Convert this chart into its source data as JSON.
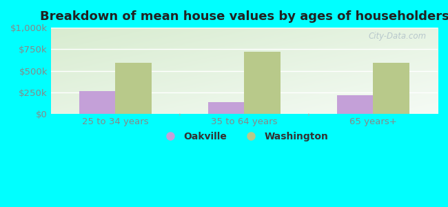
{
  "title": "Breakdown of mean house values by ages of householders",
  "categories": [
    "25 to 34 years",
    "35 to 64 years",
    "65 years+"
  ],
  "oakville_values": [
    262000,
    138000,
    218000
  ],
  "washington_values": [
    590000,
    718000,
    592000
  ],
  "ylim": [
    0,
    1000000
  ],
  "yticks": [
    0,
    250000,
    500000,
    750000,
    1000000
  ],
  "ytick_labels": [
    "$0",
    "$250k",
    "$500k",
    "$750k",
    "$1,000k"
  ],
  "oakville_color": "#c4a0d8",
  "washington_color": "#b8c98a",
  "background_color": "#00ffff",
  "plot_bg_top_left": "#d8ecd0",
  "plot_bg_bottom_right": "#f5fbf5",
  "legend_labels": [
    "Oakville",
    "Washington"
  ],
  "bar_width": 0.28,
  "watermark": "City-Data.com",
  "title_fontsize": 13,
  "axis_fontsize": 9.5,
  "legend_fontsize": 10,
  "grid_color": "#cccccc",
  "tick_label_color": "#888888",
  "title_color": "#222222"
}
